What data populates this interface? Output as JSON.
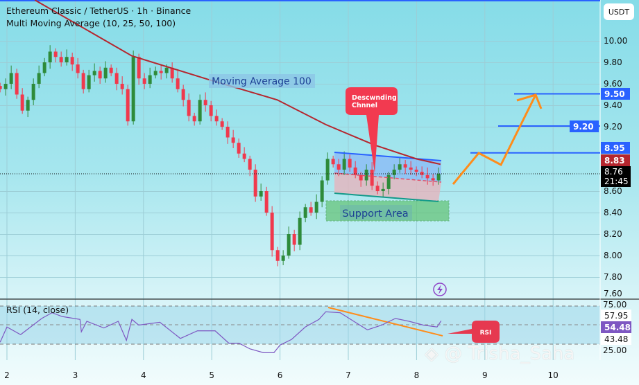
{
  "header": {
    "title": "Ethereum Classic / TetherUS · 1h · Binance",
    "indicator": "Multi Moving Average (10, 25, 50, 100)",
    "currency": "USDT"
  },
  "price_axis": {
    "ticks": [
      "10.00",
      "9.80",
      "9.60",
      "9.40",
      "9.20",
      "8.60",
      "8.40",
      "8.20",
      "8.00",
      "7.80",
      "7.60"
    ],
    "tick_values": [
      10.0,
      9.8,
      9.6,
      9.4,
      9.2,
      8.6,
      8.4,
      8.2,
      8.0,
      7.8,
      7.6
    ]
  },
  "price_tags": {
    "t950": "9.50",
    "t920": "9.20",
    "t895": "8.95",
    "t883": "8.83",
    "last": "8.76",
    "countdown": "21:45"
  },
  "time_axis": {
    "ticks": [
      "2",
      "3",
      "4",
      "5",
      "6",
      "7",
      "8",
      "9",
      "10"
    ]
  },
  "rsi": {
    "label": "RSI (14, close)",
    "ticks": [
      "75.00",
      "25.00"
    ],
    "tags": {
      "a": "57.95",
      "b": "54.48",
      "c": "43.48"
    },
    "callout": "RSI",
    "points": [
      [
        1.9,
        32
      ],
      [
        2.0,
        48
      ],
      [
        2.2,
        40
      ],
      [
        2.51,
        57
      ],
      [
        2.66,
        63
      ],
      [
        2.81,
        59
      ],
      [
        3.07,
        56
      ],
      [
        3.09,
        43
      ],
      [
        3.17,
        54
      ],
      [
        3.42,
        47
      ],
      [
        3.63,
        54
      ],
      [
        3.75,
        34
      ],
      [
        3.83,
        56
      ],
      [
        3.93,
        50
      ],
      [
        4.24,
        53
      ],
      [
        4.54,
        36
      ],
      [
        4.79,
        44
      ],
      [
        5.05,
        44
      ],
      [
        5.25,
        31
      ],
      [
        5.4,
        31
      ],
      [
        5.56,
        25
      ],
      [
        5.76,
        21
      ],
      [
        5.91,
        21
      ],
      [
        6.0,
        29
      ],
      [
        6.17,
        35
      ],
      [
        6.37,
        48
      ],
      [
        6.57,
        56
      ],
      [
        6.67,
        64
      ],
      [
        6.88,
        63
      ],
      [
        7.08,
        54
      ],
      [
        7.28,
        45
      ],
      [
        7.49,
        50
      ],
      [
        7.69,
        57
      ],
      [
        7.89,
        54
      ],
      [
        8.1,
        50
      ],
      [
        8.3,
        48
      ],
      [
        8.36,
        54.48
      ]
    ]
  },
  "annotations": {
    "ma_label": "Moving Average 100",
    "channel_label": "Descwnding Chnnel",
    "support_label": "Support Area"
  },
  "colors": {
    "up": "#2e8b3a",
    "down": "#f0394d",
    "ma100": "#b5262e",
    "levels": "#2962ff",
    "projection": "#ff8c1a",
    "rsi": "#7e57c2"
  },
  "chart_data": {
    "type": "candlestick",
    "interval_days": 0.0813,
    "start_day": 1.9,
    "closes": [
      9.55,
      9.6,
      9.7,
      9.5,
      9.35,
      9.45,
      9.6,
      9.7,
      9.8,
      9.9,
      9.85,
      9.8,
      9.85,
      9.78,
      9.7,
      9.55,
      9.68,
      9.72,
      9.65,
      9.75,
      9.7,
      9.6,
      9.55,
      9.25,
      9.85,
      9.65,
      9.6,
      9.68,
      9.72,
      9.7,
      9.75,
      9.65,
      9.55,
      9.45,
      9.3,
      9.25,
      9.45,
      9.4,
      9.3,
      9.25,
      9.2,
      9.1,
      9.05,
      8.95,
      8.9,
      8.8,
      8.55,
      8.6,
      8.4,
      8.05,
      7.95,
      8.0,
      8.2,
      8.1,
      8.35,
      8.45,
      8.4,
      8.5,
      8.7,
      8.9,
      8.85,
      8.8,
      8.9,
      8.82,
      8.75,
      8.7,
      8.8,
      8.65,
      8.6,
      8.62,
      8.75,
      8.8,
      8.85,
      8.82,
      8.8,
      8.78,
      8.75,
      8.72,
      8.7,
      8.76
    ],
    "ma100": [
      [
        2.41,
        10.38
      ],
      [
        3.83,
        9.86
      ],
      [
        4.95,
        9.64
      ],
      [
        5.96,
        9.45
      ],
      [
        6.67,
        9.22
      ],
      [
        7.38,
        9.03
      ],
      [
        8.0,
        8.9
      ],
      [
        8.35,
        8.85
      ]
    ],
    "levels": [
      9.5,
      9.2,
      8.95
    ],
    "last_price": 8.76
  }
}
